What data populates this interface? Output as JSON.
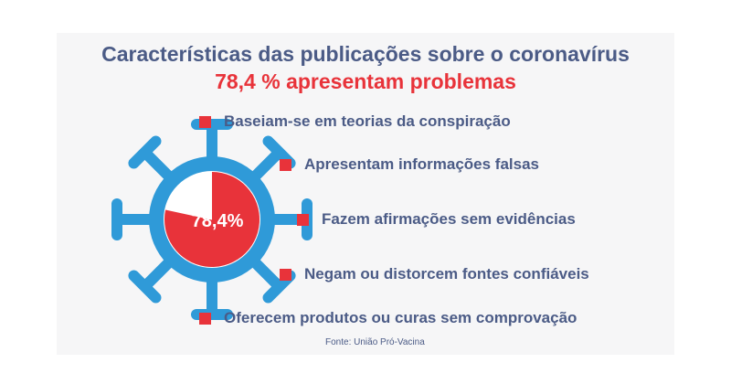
{
  "title": "Características das publicações sobre o coronavírus",
  "subtitle": "78,4 % apresentam problemas",
  "colors": {
    "primary_blue": "#4b5b86",
    "virus_blue": "#2f9ad8",
    "accent_red": "#e8333a"
  },
  "chart_data": {
    "type": "pie",
    "values": [
      78.4,
      21.6
    ],
    "value_label": "78,4%",
    "unit": "%"
  },
  "bullets": [
    "Baseiam-se em teorias da conspiração",
    "Apresentam informações falsas",
    "Fazem afirmações sem evidências",
    "Negam ou distorcem fontes confiáveis",
    "Oferecem produtos ou curas sem comprovação"
  ],
  "source": "Fonte: União Pró-Vacina"
}
